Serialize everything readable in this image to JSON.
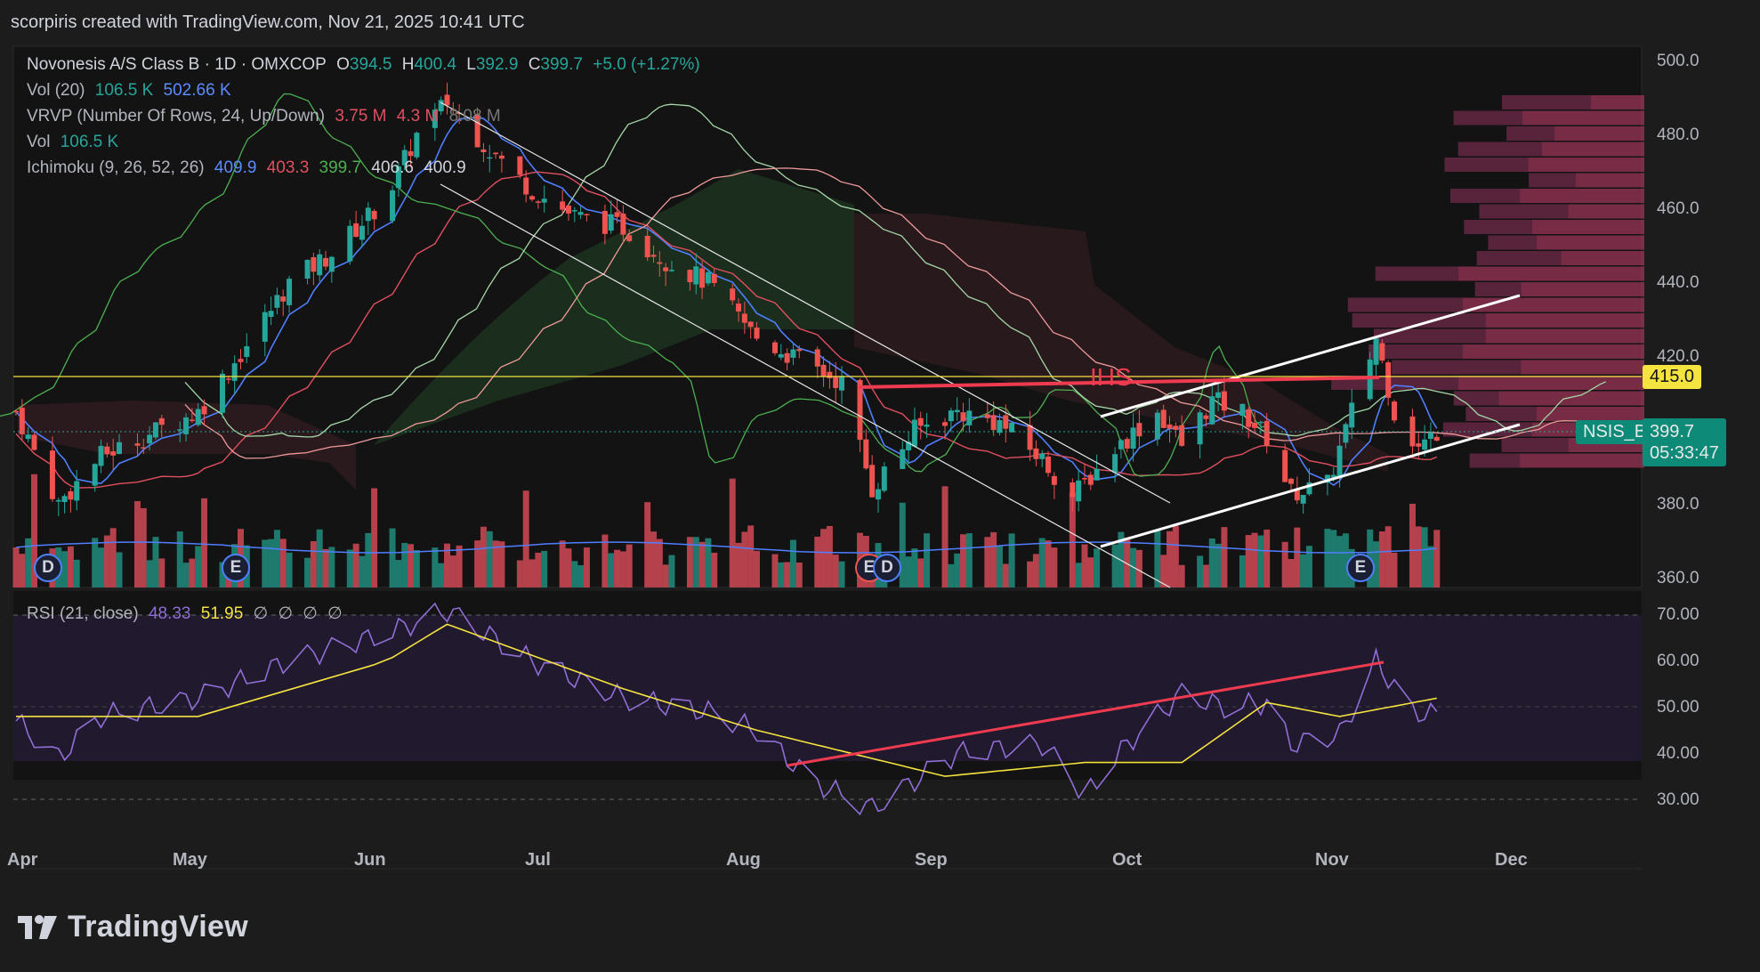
{
  "attribution": "scorpiris created with TradingView.com, Nov 21, 2025 10:41 UTC",
  "legend": {
    "symbol": {
      "title": "Novonesis A/S Class B · 1D · OMXCOP",
      "o_label": "O",
      "o": "394.5",
      "h_label": "H",
      "h": "400.4",
      "l_label": "L",
      "l": "392.9",
      "c_label": "C",
      "c": "399.7",
      "chg": "+5.0 (+1.27%)"
    },
    "vol20": {
      "label": "Vol (20)",
      "v1": "106.5 K",
      "v2": "502.66 K"
    },
    "vrvp": {
      "label": "VRVP (Number Of Rows, 24, Up/Down)",
      "v1": "3.75 M",
      "v2": "4.3 M",
      "v3": "8.08 M"
    },
    "vol": {
      "label": "Vol",
      "v1": "106.5 K"
    },
    "ichimoku": {
      "label": "Ichimoku (9, 26, 52, 26)",
      "v1": "409.9",
      "v2": "403.3",
      "v3": "399.7",
      "v4": "406.6",
      "v5": "400.9"
    },
    "rsi": {
      "label": "RSI (21, close)",
      "v1": "48.33",
      "v2": "51.95",
      "v3": "∅",
      "v4": "∅",
      "v5": "∅",
      "v6": "∅"
    }
  },
  "price_axis": [
    "500.0",
    "480.0",
    "460.0",
    "440.0",
    "420.0",
    "380.0",
    "360.0"
  ],
  "rsi_axis": [
    "70.00",
    "60.00",
    "50.00",
    "40.00",
    "30.00"
  ],
  "months": [
    "Apr",
    "May",
    "Jun",
    "Jul",
    "Aug",
    "Sep",
    "Oct",
    "Nov",
    "Dec"
  ],
  "tags": {
    "level": "415.0",
    "symbol": "NSIS_B",
    "price": "399.7",
    "countdown": "05:33:47"
  },
  "pattern_label": "IHS",
  "events": [
    "D",
    "E",
    "E",
    "D",
    "E"
  ],
  "brand": "TradingView",
  "colors": {
    "up": "#26a69a",
    "down": "#ef5350",
    "conversion": "#4f7fff",
    "base": "#e04f5f",
    "lagging": "#4caf50",
    "leadA": "#a5d6a7",
    "leadB": "#ef9a9a",
    "rsi": "#8f6ed5",
    "rsi_ma": "#f5e340",
    "level": "#f5e340"
  },
  "chart_data": [
    {
      "type": "candlestick",
      "title": "Novonesis A/S Class B · 1D · OMXCOP",
      "ylim": [
        360,
        500
      ],
      "x_range": [
        "2025-04-01",
        "2025-12-31"
      ],
      "price_points": [
        {
          "date": "2025-04-01",
          "close": 405
        },
        {
          "date": "2025-04-08",
          "close": 380
        },
        {
          "date": "2025-04-15",
          "close": 393
        },
        {
          "date": "2025-04-23",
          "close": 399
        },
        {
          "date": "2025-05-01",
          "close": 405
        },
        {
          "date": "2025-05-09",
          "close": 423
        },
        {
          "date": "2025-05-16",
          "close": 440
        },
        {
          "date": "2025-05-23",
          "close": 448
        },
        {
          "date": "2025-06-01",
          "close": 463
        },
        {
          "date": "2025-06-06",
          "close": 480
        },
        {
          "date": "2025-06-11",
          "close": 489
        },
        {
          "date": "2025-06-18",
          "close": 476
        },
        {
          "date": "2025-06-25",
          "close": 465
        },
        {
          "date": "2025-07-02",
          "close": 458
        },
        {
          "date": "2025-07-10",
          "close": 455
        },
        {
          "date": "2025-07-17",
          "close": 446
        },
        {
          "date": "2025-07-24",
          "close": 440
        },
        {
          "date": "2025-08-01",
          "close": 425
        },
        {
          "date": "2025-08-08",
          "close": 419
        },
        {
          "date": "2025-08-15",
          "close": 413
        },
        {
          "date": "2025-08-20",
          "close": 384
        },
        {
          "date": "2025-08-27",
          "close": 400
        },
        {
          "date": "2025-09-03",
          "close": 405
        },
        {
          "date": "2025-09-10",
          "close": 402
        },
        {
          "date": "2025-09-17",
          "close": 392
        },
        {
          "date": "2025-09-22",
          "close": 382
        },
        {
          "date": "2025-09-29",
          "close": 395
        },
        {
          "date": "2025-10-06",
          "close": 405
        },
        {
          "date": "2025-10-10",
          "close": 396
        },
        {
          "date": "2025-10-15",
          "close": 408
        },
        {
          "date": "2025-10-20",
          "close": 405
        },
        {
          "date": "2025-10-24",
          "close": 398
        },
        {
          "date": "2025-10-28",
          "close": 383
        },
        {
          "date": "2025-11-03",
          "close": 385
        },
        {
          "date": "2025-11-07",
          "close": 405
        },
        {
          "date": "2025-11-11",
          "close": 425
        },
        {
          "date": "2025-11-14",
          "close": 405
        },
        {
          "date": "2025-11-18",
          "close": 395
        },
        {
          "date": "2025-11-21",
          "close": 399.7
        }
      ],
      "horizontal_level": 415.0,
      "last_price": 399.7
    },
    {
      "type": "line",
      "title": "RSI (21, close)",
      "ylim": [
        25,
        75
      ],
      "bands": [
        30,
        50,
        70
      ],
      "series": [
        {
          "name": "RSI",
          "points": [
            {
              "date": "2025-04-01",
              "v": 47
            },
            {
              "date": "2025-04-08",
              "v": 39
            },
            {
              "date": "2025-04-15",
              "v": 48
            },
            {
              "date": "2025-05-01",
              "v": 52
            },
            {
              "date": "2025-05-16",
              "v": 60
            },
            {
              "date": "2025-06-01",
              "v": 66
            },
            {
              "date": "2025-06-11",
              "v": 71
            },
            {
              "date": "2025-06-25",
              "v": 60
            },
            {
              "date": "2025-07-10",
              "v": 52
            },
            {
              "date": "2025-07-24",
              "v": 49
            },
            {
              "date": "2025-08-01",
              "v": 45
            },
            {
              "date": "2025-08-10",
              "v": 34
            },
            {
              "date": "2025-08-20",
              "v": 28
            },
            {
              "date": "2025-09-03",
              "v": 40
            },
            {
              "date": "2025-09-17",
              "v": 42
            },
            {
              "date": "2025-09-24",
              "v": 31
            },
            {
              "date": "2025-10-01",
              "v": 42
            },
            {
              "date": "2025-10-10",
              "v": 53
            },
            {
              "date": "2025-10-17",
              "v": 50
            },
            {
              "date": "2025-10-24",
              "v": 51
            },
            {
              "date": "2025-10-28",
              "v": 42
            },
            {
              "date": "2025-11-05",
              "v": 44
            },
            {
              "date": "2025-11-11",
              "v": 60
            },
            {
              "date": "2025-11-17",
              "v": 49
            },
            {
              "date": "2025-11-21",
              "v": 48.33
            }
          ]
        },
        {
          "name": "RSI-based MA",
          "points": [
            {
              "date": "2025-04-01",
              "v": 48
            },
            {
              "date": "2025-05-01",
              "v": 48
            },
            {
              "date": "2025-06-01",
              "v": 60
            },
            {
              "date": "2025-06-11",
              "v": 68
            },
            {
              "date": "2025-07-10",
              "v": 54
            },
            {
              "date": "2025-08-01",
              "v": 45
            },
            {
              "date": "2025-09-01",
              "v": 35
            },
            {
              "date": "2025-09-24",
              "v": 38
            },
            {
              "date": "2025-10-10",
              "v": 38
            },
            {
              "date": "2025-10-24",
              "v": 51
            },
            {
              "date": "2025-11-05",
              "v": 48
            },
            {
              "date": "2025-11-21",
              "v": 51.95
            }
          ]
        }
      ]
    }
  ]
}
